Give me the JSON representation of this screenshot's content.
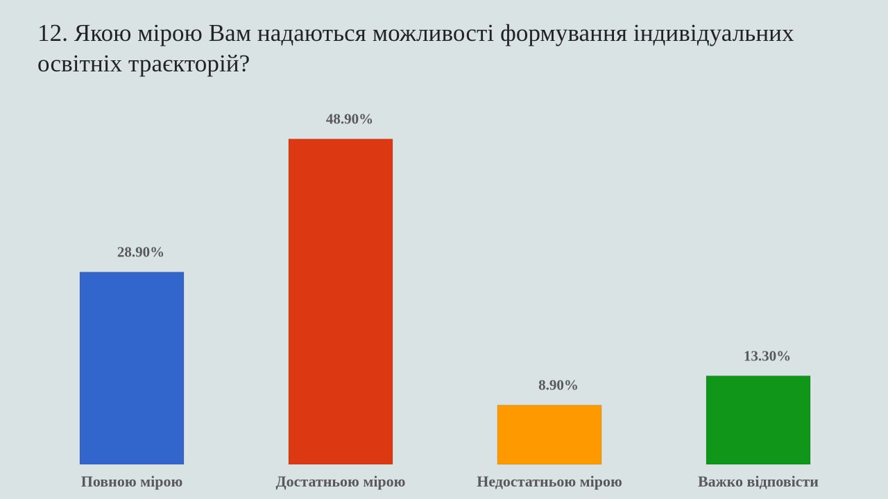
{
  "title": "12. Якою мірою Вам надаються можливості формування індивідуальних освітніх траєкторій?",
  "chart_data": {
    "type": "bar",
    "categories": [
      "Повною мірою",
      "Достатньою мірою",
      "Недостатньою мірою",
      "Важко відповісти"
    ],
    "values": [
      28.9,
      48.9,
      8.9,
      13.3
    ],
    "value_labels": [
      "28.90%",
      "48.90%",
      "8.90%",
      "13.30%"
    ],
    "colors": [
      "#3366cc",
      "#dc3912",
      "#ff9900",
      "#109618"
    ],
    "ylim": [
      0,
      50
    ],
    "grid": false,
    "legend": "none"
  }
}
